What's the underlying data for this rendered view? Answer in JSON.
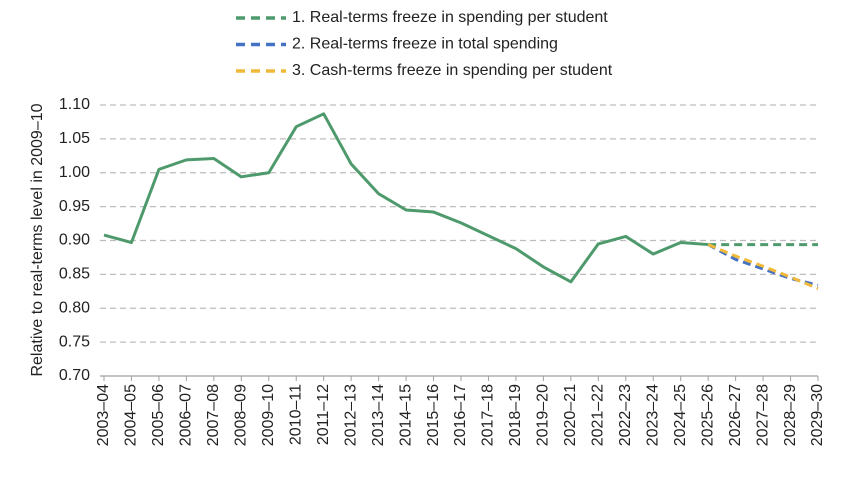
{
  "chart_data": {
    "type": "line",
    "y_label": "Relative to real-terms level in 2009–10",
    "categories": [
      "2003–04",
      "2004–05",
      "2005–06",
      "2006–07",
      "2007–08",
      "2008–09",
      "2009–10",
      "2010–11",
      "2011–12",
      "2012–13",
      "2013–14",
      "2014–15",
      "2015–16",
      "2016–17",
      "2017–18",
      "2018–19",
      "2019–20",
      "2020–21",
      "2021–22",
      "2022–23",
      "2023–24",
      "2024–25",
      "2025–26",
      "2026–27",
      "2027–28",
      "2028–29",
      "2029–30"
    ],
    "series": [
      {
        "color": "#4f9a6c",
        "dash": false,
        "values": [
          0.908,
          0.897,
          1.005,
          1.019,
          1.021,
          0.994,
          1.0,
          1.068,
          1.087,
          1.013,
          0.969,
          0.945,
          0.942,
          0.926,
          0.907,
          0.888,
          0.861,
          0.839,
          0.895,
          0.906,
          0.88,
          0.897,
          0.894,
          null,
          null,
          null,
          null
        ]
      },
      {
        "name": "1. Real-terms freeze in spending per student",
        "color": "#4f9a6c",
        "dash": true,
        "values": [
          null,
          null,
          null,
          null,
          null,
          null,
          null,
          null,
          null,
          null,
          null,
          null,
          null,
          null,
          null,
          null,
          null,
          null,
          null,
          null,
          null,
          null,
          0.894,
          0.894,
          0.894,
          0.894,
          0.894
        ]
      },
      {
        "name": "2. Real-terms freeze in total spending",
        "color": "#4472c4",
        "dash": true,
        "values": [
          null,
          null,
          null,
          null,
          null,
          null,
          null,
          null,
          null,
          null,
          null,
          null,
          null,
          null,
          null,
          null,
          null,
          null,
          null,
          null,
          null,
          null,
          0.894,
          0.872,
          0.858,
          0.844,
          0.834
        ]
      },
      {
        "name": "3. Cash-terms freeze in spending per student",
        "color": "#f0b93a",
        "dash": true,
        "values": [
          null,
          null,
          null,
          null,
          null,
          null,
          null,
          null,
          null,
          null,
          null,
          null,
          null,
          null,
          null,
          null,
          null,
          null,
          null,
          null,
          null,
          null,
          0.894,
          0.877,
          0.862,
          0.846,
          0.829
        ]
      }
    ],
    "ylim": [
      0.7,
      1.1
    ],
    "yticks": [
      {
        "value": 0.7,
        "label": "0.70"
      },
      0.75,
      {
        "value": 0.8,
        "label": "0.80"
      },
      0.85,
      {
        "value": 0.9,
        "label": "0.90"
      },
      0.95,
      {
        "value": 1.0,
        "label": "1.00"
      },
      1.05,
      {
        "value": 1.1,
        "label": "1.10"
      }
    ],
    "grid": true,
    "legend": "top"
  }
}
